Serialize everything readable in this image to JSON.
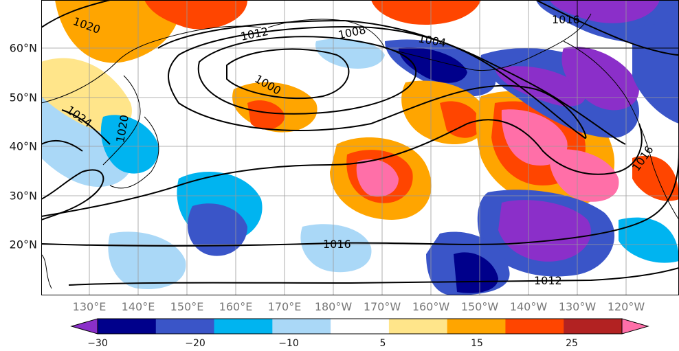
{
  "map": {
    "latitude_labels": [
      "60°N",
      "50°N",
      "40°N",
      "30°N",
      "20°N"
    ],
    "longitude_labels": [
      "130°E",
      "140°E",
      "150°E",
      "160°E",
      "170°E",
      "180°W",
      "170°W",
      "160°W",
      "150°W",
      "140°W",
      "130°W",
      "120°W"
    ],
    "isobar_labels": [
      "1020",
      "1012",
      "1008",
      "1004",
      "1016",
      "1000",
      "1024",
      "1020",
      "1016",
      "1012",
      "1016"
    ],
    "gridlines": true
  },
  "colorbar": {
    "colors": [
      "#8b2fc9",
      "#00008b",
      "#3a55c8",
      "#00b4f0",
      "#aad8f7",
      "#ffffff",
      "#ffe58a",
      "#ffa500",
      "#ff4500",
      "#b22222",
      "#ff6fa8"
    ],
    "tick_labels": [
      "−30",
      "−20",
      "−10",
      "5",
      "15",
      "25"
    ]
  }
}
